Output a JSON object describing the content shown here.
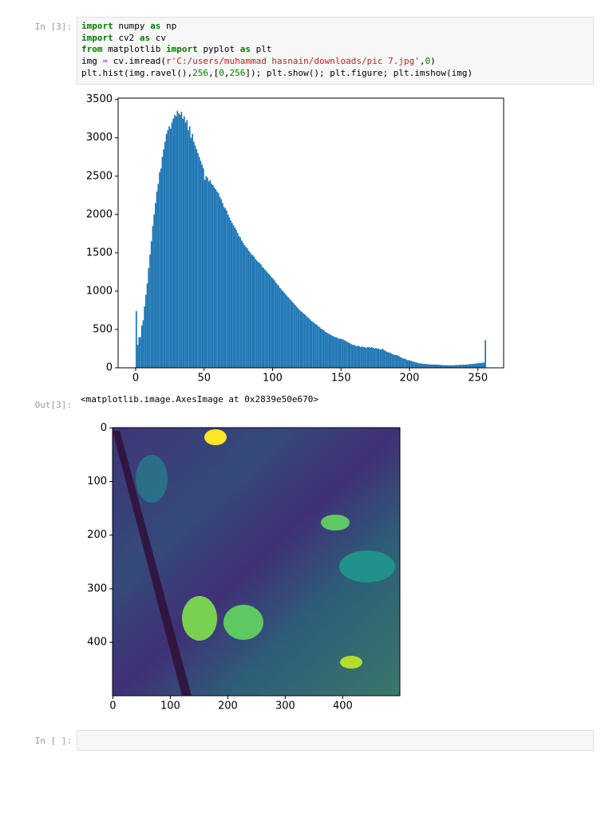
{
  "cells": [
    {
      "prompt": "In [3]:",
      "code": [
        [
          {
            "text": "import",
            "color": "#008000"
          },
          {
            "text": " numpy "
          },
          {
            "text": "as",
            "color": "#008000"
          },
          {
            "text": " np"
          }
        ],
        [
          {
            "text": "import",
            "color": "#008000"
          },
          {
            "text": " cv2 "
          },
          {
            "text": "as",
            "color": "#008000"
          },
          {
            "text": " cv"
          }
        ],
        [
          {
            "text": "from",
            "color": "#008000"
          },
          {
            "text": " matplotlib "
          },
          {
            "text": "import",
            "color": "#008000"
          },
          {
            "text": " pyplot "
          },
          {
            "text": "as",
            "color": "#008000"
          },
          {
            "text": " plt"
          }
        ],
        [
          {
            "text": "img "
          },
          {
            "text": "=",
            "color": "#aa22ff"
          },
          {
            "text": " cv.imread("
          },
          {
            "text": "r'C:/users/muhammad hasnain/downloads/pic 7.jpg'",
            "color": "#ba2121"
          },
          {
            "text": ","
          },
          {
            "text": "0",
            "color": "#008000"
          },
          {
            "text": ")"
          }
        ],
        [
          {
            "text": "plt.hist(img.ravel(),"
          },
          {
            "text": "256",
            "color": "#008000"
          },
          {
            "text": ",["
          },
          {
            "text": "0",
            "color": "#008000"
          },
          {
            "text": ","
          },
          {
            "text": "256",
            "color": "#008000"
          },
          {
            "text": "]); plt.show(); plt.figure; plt.imshow(img)"
          }
        ]
      ],
      "out_prompt": "Out[3]:",
      "output": "<matplotlib.image.AxesImage at 0x2839e50e670>"
    },
    {
      "prompt": "In [ ]:"
    }
  ],
  "chart_data": [
    {
      "type": "histogram",
      "color": "#1f77b4",
      "bins": [
        0,
        1,
        2,
        3,
        4,
        5,
        6,
        7,
        8,
        9,
        10,
        11,
        12,
        13,
        14,
        15,
        16,
        17,
        18,
        19,
        20,
        21,
        22,
        23,
        24,
        25,
        26,
        27,
        28,
        29,
        30,
        31,
        32,
        33,
        34,
        35,
        36,
        37,
        38,
        39,
        40,
        41,
        42,
        43,
        44,
        45,
        46,
        47,
        48,
        49,
        50,
        51,
        52,
        53,
        54,
        55,
        56,
        57,
        58,
        59,
        60,
        61,
        62,
        63,
        64,
        65,
        66,
        67,
        68,
        69,
        70,
        71,
        72,
        73,
        74,
        75,
        76,
        77,
        78,
        79,
        80,
        81,
        82,
        83,
        84,
        85,
        86,
        87,
        88,
        89,
        90,
        91,
        92,
        93,
        94,
        95,
        96,
        97,
        98,
        99,
        100,
        101,
        102,
        103,
        104,
        105,
        106,
        107,
        108,
        109,
        110,
        111,
        112,
        113,
        114,
        115,
        116,
        117,
        118,
        119,
        120,
        121,
        122,
        123,
        124,
        125,
        126,
        127,
        128,
        129,
        130,
        131,
        132,
        133,
        134,
        135,
        136,
        137,
        138,
        139,
        140,
        141,
        142,
        143,
        144,
        145,
        146,
        147,
        148,
        149,
        150,
        151,
        152,
        153,
        154,
        155,
        156,
        157,
        158,
        159,
        160,
        161,
        162,
        163,
        164,
        165,
        166,
        167,
        168,
        169,
        170,
        171,
        172,
        173,
        174,
        175,
        176,
        177,
        178,
        179,
        180,
        181,
        182,
        183,
        184,
        185,
        186,
        187,
        188,
        189,
        190,
        191,
        192,
        193,
        194,
        195,
        196,
        197,
        198,
        199,
        200,
        201,
        202,
        203,
        204,
        205,
        206,
        207,
        208,
        209,
        210,
        211,
        212,
        213,
        214,
        215,
        216,
        217,
        218,
        219,
        220,
        221,
        222,
        223,
        224,
        225,
        226,
        227,
        228,
        229,
        230,
        231,
        232,
        233,
        234,
        235,
        236,
        237,
        238,
        239,
        240,
        241,
        242,
        243,
        244,
        245,
        246,
        247,
        248,
        249,
        250,
        251,
        252,
        253,
        254,
        255,
        256
      ],
      "values": [
        740,
        300,
        400,
        400,
        550,
        620,
        800,
        950,
        1100,
        1300,
        1480,
        1650,
        1850,
        2000,
        2150,
        2300,
        2400,
        2550,
        2600,
        2750,
        2850,
        2950,
        3050,
        3100,
        3150,
        3120,
        3200,
        3250,
        3300,
        3280,
        3350,
        3320,
        3300,
        3340,
        3250,
        3280,
        3200,
        3230,
        3100,
        3150,
        3000,
        3050,
        2950,
        2900,
        2850,
        2800,
        2750,
        2700,
        2650,
        2600,
        2450,
        2500,
        2480,
        2430,
        2450,
        2400,
        2380,
        2350,
        2330,
        2300,
        2280,
        2230,
        2200,
        2150,
        2100,
        2080,
        2050,
        2000,
        1960,
        1920,
        1890,
        1860,
        1830,
        1800,
        1760,
        1720,
        1700,
        1660,
        1630,
        1600,
        1580,
        1560,
        1530,
        1510,
        1480,
        1470,
        1450,
        1420,
        1400,
        1380,
        1370,
        1350,
        1320,
        1300,
        1280,
        1260,
        1240,
        1220,
        1200,
        1180,
        1160,
        1140,
        1110,
        1090,
        1070,
        1040,
        1020,
        1000,
        980,
        960,
        940,
        920,
        900,
        880,
        860,
        840,
        820,
        800,
        780,
        760,
        740,
        730,
        710,
        700,
        680,
        660,
        650,
        630,
        610,
        600,
        585,
        570,
        560,
        540,
        530,
        510,
        500,
        490,
        470,
        460,
        450,
        440,
        430,
        420,
        410,
        400,
        400,
        390,
        380,
        380,
        376,
        370,
        360,
        350,
        340,
        330,
        320,
        310,
        300,
        300,
        290,
        280,
        290,
        280,
        270,
        280,
        270,
        270,
        260,
        270,
        270,
        260,
        270,
        260,
        250,
        260,
        250,
        250,
        240,
        240,
        250,
        230,
        220,
        210,
        200,
        200,
        190,
        180,
        170,
        170,
        167,
        160,
        150,
        140,
        130,
        120,
        120,
        110,
        100,
        100,
        94,
        90,
        80,
        80,
        70,
        70,
        60,
        60,
        55,
        55,
        52,
        50,
        48,
        46,
        45,
        44,
        43,
        42,
        42,
        42,
        42,
        40,
        38,
        36,
        35,
        34,
        33,
        32,
        31,
        31,
        31,
        32,
        33,
        35,
        36,
        37,
        38,
        39,
        40,
        40,
        40,
        42,
        44,
        46,
        48,
        50,
        52,
        54,
        56,
        58,
        60,
        62,
        64,
        66,
        70,
        360
      ],
      "xlim": [
        -12.8,
        268.8
      ],
      "xticks": [
        0,
        50,
        100,
        150,
        200,
        250
      ],
      "ylim": [
        0,
        3517.5
      ],
      "yticks": [
        0,
        500,
        1000,
        1500,
        2000,
        2500,
        3000,
        3500
      ]
    },
    {
      "type": "image",
      "xlim": [
        -0.5,
        499.5
      ],
      "xticks": [
        0,
        100,
        200,
        300,
        400
      ],
      "ylim": [
        499.5,
        -0.5
      ],
      "yticks": [
        0,
        100,
        200,
        300,
        400
      ]
    }
  ]
}
